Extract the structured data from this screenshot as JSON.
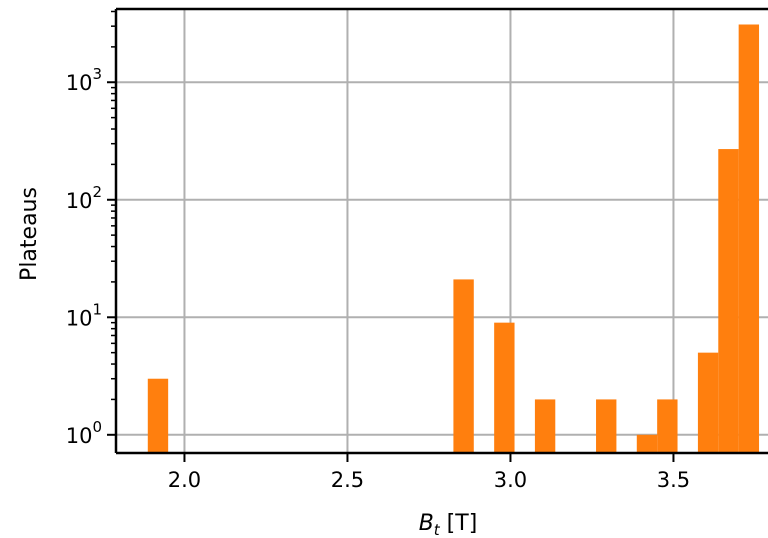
{
  "chart_data": {
    "type": "bar",
    "title": "",
    "xlabel_main": "B",
    "xlabel_sub": "t",
    "xlabel_unit": " [T]",
    "ylabel": "Plateaus",
    "yscale": "log",
    "xlim": [
      1.79,
      3.79
    ],
    "ylim": [
      0.7,
      4200
    ],
    "grid": true,
    "bar_color": "#ff7f0e",
    "grid_color": "#b0b0b0",
    "xticks": [
      {
        "value": 2.0,
        "label": "2.0"
      },
      {
        "value": 2.5,
        "label": "2.5"
      },
      {
        "value": 3.0,
        "label": "3.0"
      },
      {
        "value": 3.5,
        "label": "3.5"
      }
    ],
    "yticks": [
      {
        "value": 1,
        "base": "10",
        "exp": "0"
      },
      {
        "value": 10,
        "base": "10",
        "exp": "1"
      },
      {
        "value": 100,
        "base": "10",
        "exp": "2"
      },
      {
        "value": 1000,
        "base": "10",
        "exp": "3"
      }
    ],
    "bins": [
      {
        "x0": 1.8875,
        "x1": 1.95,
        "count": 3
      },
      {
        "x0": 2.825,
        "x1": 2.8875,
        "count": 21
      },
      {
        "x0": 2.95,
        "x1": 3.0125,
        "count": 9
      },
      {
        "x0": 3.075,
        "x1": 3.1375,
        "count": 2
      },
      {
        "x0": 3.2625,
        "x1": 3.325,
        "count": 2
      },
      {
        "x0": 3.3875,
        "x1": 3.45,
        "count": 1
      },
      {
        "x0": 3.45,
        "x1": 3.5125,
        "count": 2
      },
      {
        "x0": 3.575,
        "x1": 3.6375,
        "count": 5
      },
      {
        "x0": 3.6375,
        "x1": 3.7,
        "count": 270
      },
      {
        "x0": 3.7,
        "x1": 3.7625,
        "count": 3100
      }
    ]
  }
}
